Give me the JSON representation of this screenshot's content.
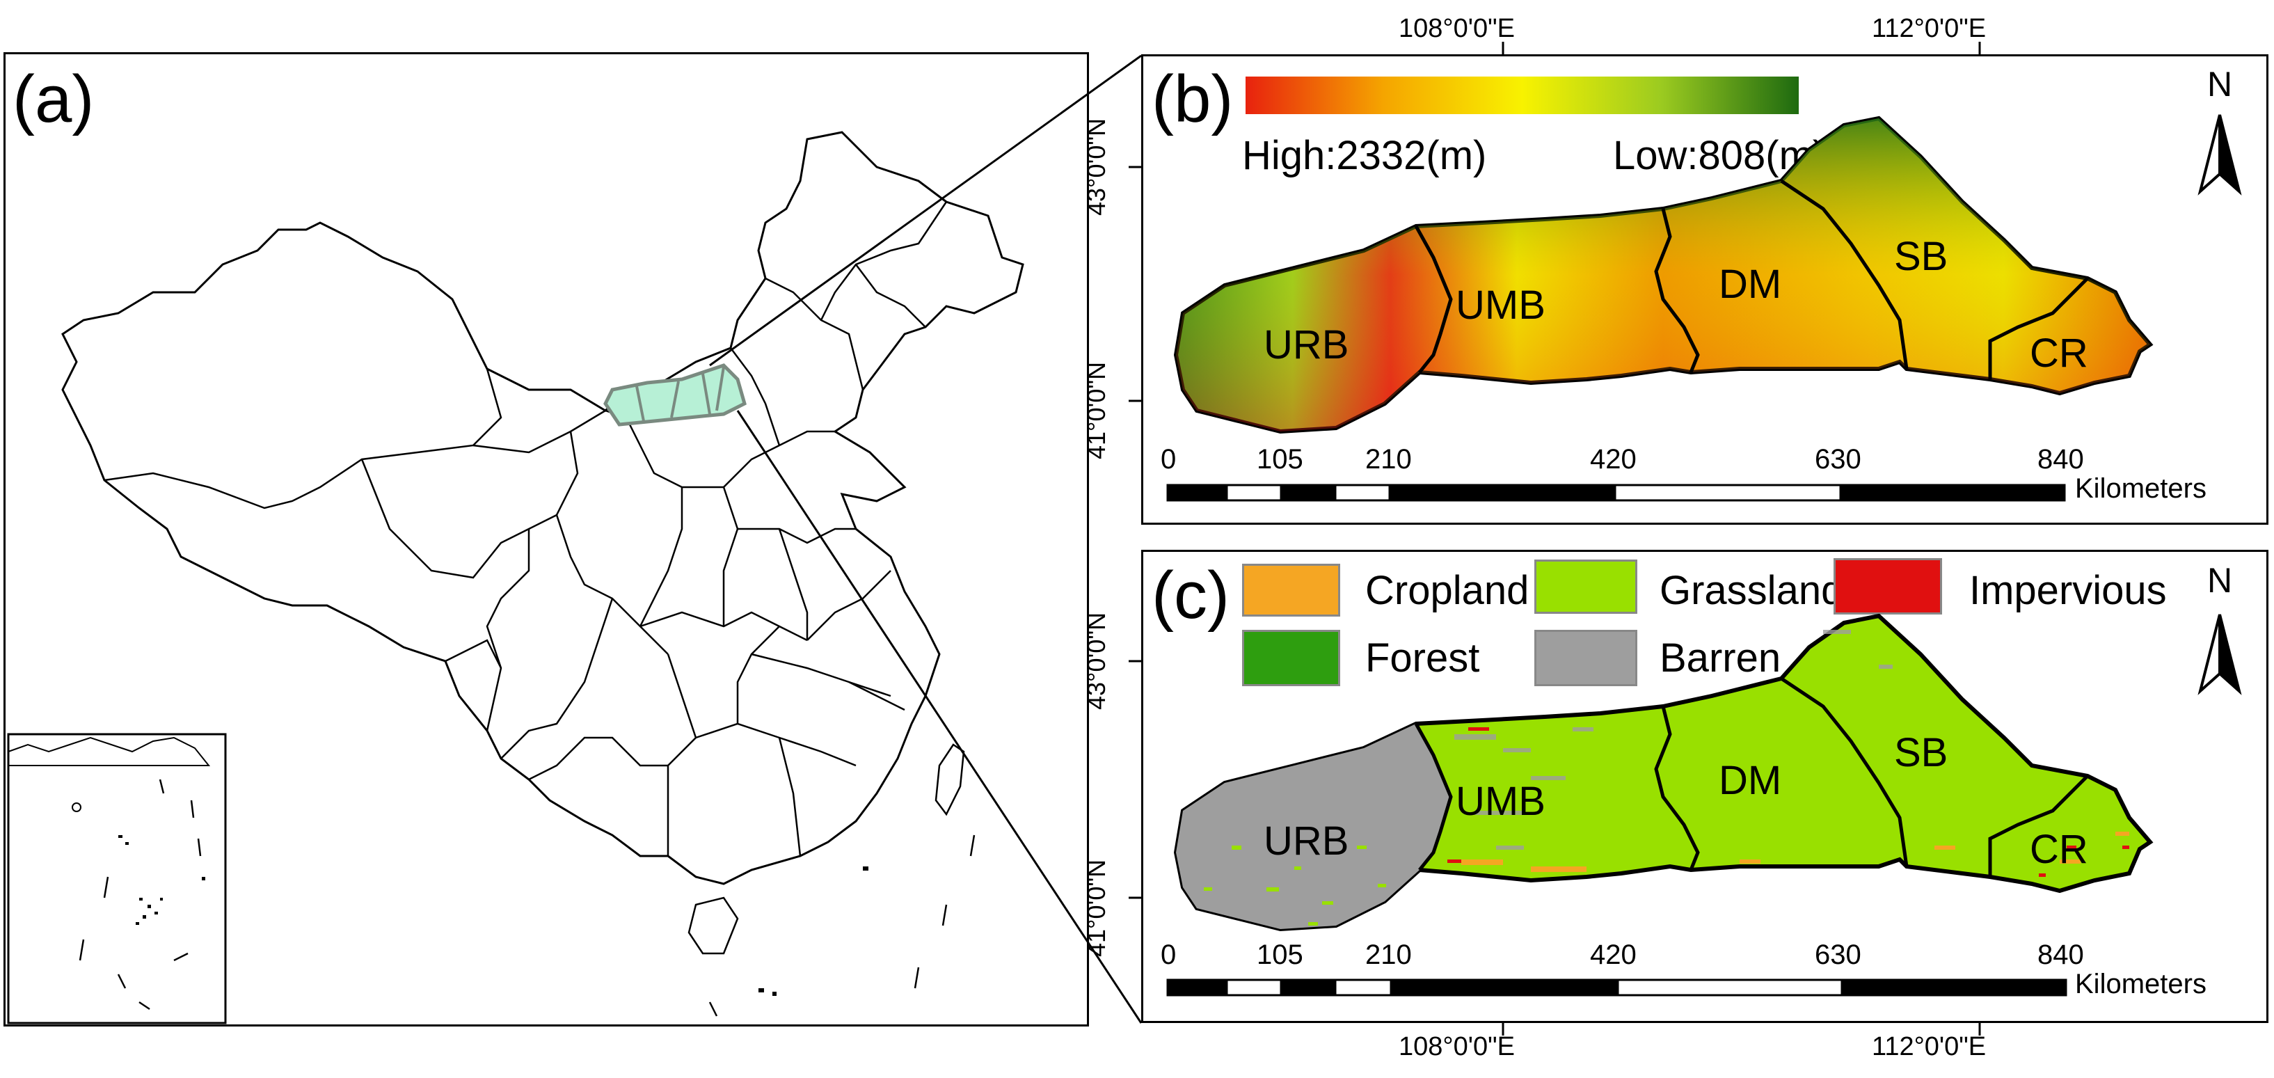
{
  "panel_a": {
    "label": "(a)"
  },
  "panel_b": {
    "label": "(b)",
    "legend": {
      "high": "High:2332(m)",
      "low": "Low:808(m)",
      "gradient": [
        "#e8220e",
        "#f5a500",
        "#f8f200",
        "#9ccb20",
        "#1e6a10"
      ]
    },
    "top_coords": [
      "108°0'0\"E",
      "112°0'0\"E"
    ],
    "left_coords": [
      "43°0'0\"N",
      "41°0'0\"N"
    ],
    "regions": [
      "URB",
      "UMB",
      "DM",
      "SB",
      "CR"
    ],
    "scale": {
      "ticks": [
        "0",
        "105",
        "210",
        "420",
        "630",
        "840"
      ],
      "unit": "Kilometers"
    },
    "north": "N"
  },
  "panel_c": {
    "label": "(c)",
    "legend": [
      {
        "name": "Cropland",
        "color": "#f5a623"
      },
      {
        "name": "Grassland",
        "color": "#99e000"
      },
      {
        "name": "Impervious",
        "color": "#e01010"
      },
      {
        "name": "Forest",
        "color": "#2e9e0f"
      },
      {
        "name": "Barren",
        "color": "#9e9e9e"
      }
    ],
    "bottom_coords": [
      "108°0'0\"E",
      "112°0'0\"E"
    ],
    "left_coords": [
      "43°0'0\"N",
      "41°0'0\"N"
    ],
    "regions": [
      "URB",
      "UMB",
      "DM",
      "SB",
      "CR"
    ],
    "scale": {
      "ticks": [
        "0",
        "105",
        "210",
        "420",
        "630",
        "840"
      ],
      "unit": "Kilometers"
    },
    "north": "N"
  },
  "colors": {
    "study_area": "#b7f0d6",
    "barren": "#9e9e9e",
    "grassland": "#99e000"
  }
}
